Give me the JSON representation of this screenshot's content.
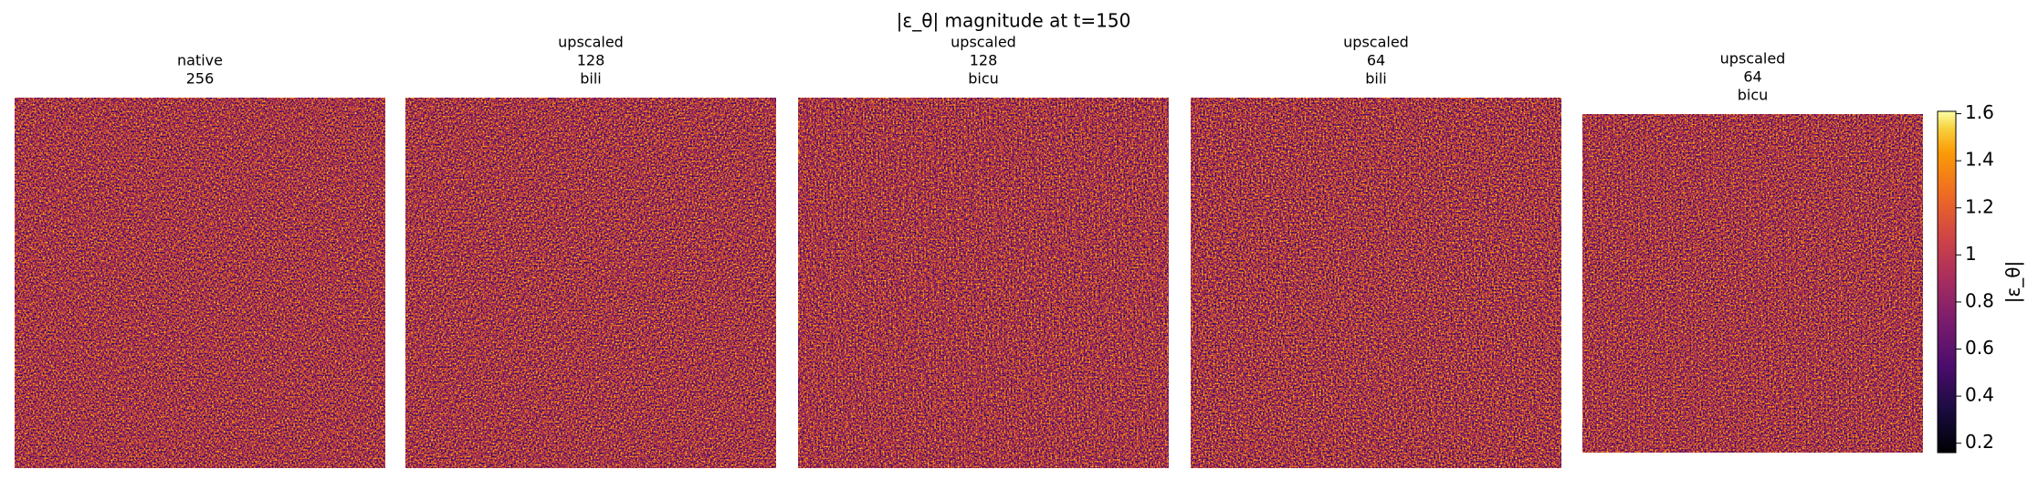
{
  "chart_data": {
    "type": "heatmap",
    "title": "|ε_θ| magnitude at t=150",
    "panels": [
      {
        "title": [
          "native",
          "256"
        ]
      },
      {
        "title": [
          "upscaled",
          "128",
          "bili"
        ]
      },
      {
        "title": [
          "upscaled",
          "128",
          "bicu"
        ]
      },
      {
        "title": [
          "upscaled",
          "64",
          "bili"
        ]
      },
      {
        "title": [
          "upscaled",
          "64",
          "bicu"
        ]
      }
    ],
    "colormap": "inferno",
    "colorbar": {
      "label": "|ε_θ|",
      "lim": [
        0.16,
        1.61
      ],
      "ticks": [
        0.2,
        0.4,
        0.6,
        0.8,
        1.0,
        1.2,
        1.4,
        1.6
      ]
    }
  }
}
